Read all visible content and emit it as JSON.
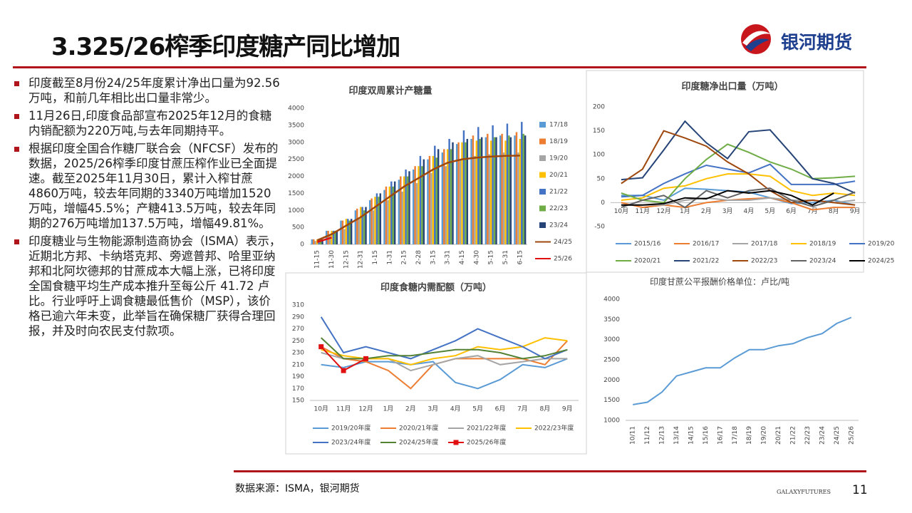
{
  "header": {
    "title": "3.325/26榨季印度糖产同比增加",
    "brand": "银河期货"
  },
  "bullets": [
    "印度截至8月份24/25年度累计净出口量为92.56万吨，和前几年相比出口量非常少。",
    "11月26日,印度食品部宣布2025年12月的食糖内销配额为220万吨,与去年同期持平。",
    "根据印度全国合作糖厂联合会（NFCSF）发布的数据，2025/26榨季印度甘蔗压榨作业已全面提速。截至2025年11月30日，累计入榨甘蔗4860万吨，较去年同期的3340万吨增加1520万吨，增幅45.5%；产糖413.5万吨，较去年同期的276万吨增加137.5万吨，增幅49.81%。",
    "印度糖业与生物能源制造商协会（ISMA）表示，近期北方邦、卡纳塔克邦、旁遮普邦、哈里亚纳邦和北阿坎德邦的甘蔗成本大幅上涨，已将印度全国食糖平均生产成本推升至每公斤 41.72 卢比。行业呼吁上调食糖最低售价（MSP），该价格已逾六年未变，此举旨在确保糖厂获得合理回报，并及时向农民支付款项。"
  ],
  "chart_data": [
    {
      "type": "bar",
      "title": "印度双周累计产糖量",
      "legend": "right",
      "grid": false,
      "categories": [
        "11-15",
        "11-30",
        "12-15",
        "12-31",
        "1-15",
        "1-31",
        "2-15",
        "2-28",
        "3-15",
        "3-31",
        "4-15",
        "4-30",
        "5-15",
        "5-31",
        "6-15"
      ],
      "ylim": [
        0,
        4000
      ],
      "yticks": [
        0,
        500,
        1000,
        1500,
        2000,
        2500,
        3000,
        3500,
        4000
      ],
      "series": [
        {
          "name": "17/18",
          "type": "bar",
          "color": "#5b9bd5",
          "values": [
            150,
            400,
            700,
            1000,
            1300,
            1600,
            1900,
            2200,
            2500,
            2700,
            2950,
            3100,
            3150,
            3200,
            3200
          ]
        },
        {
          "name": "18/19",
          "type": "bar",
          "color": "#ed7d31",
          "values": [
            150,
            400,
            700,
            1050,
            1350,
            1700,
            2000,
            2300,
            2600,
            2800,
            3000,
            3200,
            3250,
            3250,
            3300
          ]
        },
        {
          "name": "19/20",
          "type": "bar",
          "color": "#a5a5a5",
          "values": [
            100,
            250,
            450,
            750,
            1000,
            1300,
            1550,
            1800,
            2100,
            2300,
            2500,
            2600,
            2650,
            2700,
            2700
          ]
        },
        {
          "name": "20/21",
          "type": "bar",
          "color": "#ffc000",
          "values": [
            150,
            400,
            750,
            1100,
            1400,
            1700,
            2000,
            2300,
            2600,
            2800,
            3000,
            3050,
            3050,
            3050,
            3100
          ]
        },
        {
          "name": "21/22",
          "type": "bar",
          "color": "#4472c4",
          "values": [
            150,
            400,
            750,
            1100,
            1500,
            1850,
            2200,
            2600,
            2900,
            3100,
            3350,
            3450,
            3500,
            3550,
            3600
          ]
        },
        {
          "name": "22/23",
          "type": "bar",
          "color": "#70ad47",
          "values": [
            150,
            400,
            700,
            1000,
            1400,
            1700,
            2000,
            2300,
            2550,
            2800,
            3000,
            3100,
            3150,
            3200,
            3250
          ]
        },
        {
          "name": "23/24",
          "type": "bar",
          "color": "#264478",
          "values": [
            150,
            400,
            750,
            1100,
            1500,
            1850,
            2150,
            2500,
            2800,
            3000,
            3100,
            3150,
            3150,
            3150,
            3200
          ]
        },
        {
          "name": "24/25",
          "type": "line",
          "color": "#9e480e",
          "values": [
            120,
            300,
            550,
            800,
            1100,
            1400,
            1700,
            1950,
            2200,
            2400,
            2500,
            2550,
            2580,
            2600,
            2610
          ]
        },
        {
          "name": "25/26",
          "type": "line",
          "color": "#e01010",
          "values": [
            70,
            200,
            null,
            null,
            null,
            null,
            null,
            null,
            null,
            null,
            null,
            null,
            null,
            null,
            null
          ]
        }
      ]
    },
    {
      "type": "line",
      "title": "印度糖净出口量（万吨）",
      "legend": "bottom",
      "grid": false,
      "categories": [
        "10月",
        "11月",
        "12月",
        "1月",
        "2月",
        "3月",
        "4月",
        "5月",
        "6月",
        "7月",
        "8月",
        "9月"
      ],
      "ylim": [
        -50,
        200
      ],
      "yticks": [
        -50,
        0,
        50,
        100,
        150,
        200
      ],
      "series": [
        {
          "name": "2015/16",
          "color": "#5b9bd5",
          "values": [
            15,
            15,
            5,
            30,
            28,
            25,
            22,
            10,
            -2,
            0,
            5,
            -5
          ]
        },
        {
          "name": "2016/17",
          "color": "#ed7d31",
          "values": [
            0,
            -10,
            -5,
            -10,
            0,
            5,
            8,
            10,
            0,
            -15,
            -10,
            -10
          ]
        },
        {
          "name": "2017/18",
          "color": "#a5a5a5",
          "values": [
            -5,
            -5,
            -5,
            5,
            10,
            5,
            5,
            10,
            5,
            5,
            0,
            5
          ]
        },
        {
          "name": "2018/19",
          "color": "#ffc000",
          "values": [
            5,
            10,
            30,
            35,
            50,
            60,
            60,
            55,
            25,
            15,
            20,
            15
          ]
        },
        {
          "name": "2019/20",
          "color": "#4472c4",
          "values": [
            12,
            15,
            40,
            60,
            78,
            70,
            62,
            80,
            38,
            38,
            38,
            45
          ]
        },
        {
          "name": "2020/21",
          "color": "#70ad47",
          "values": [
            20,
            5,
            0,
            50,
            90,
            122,
            105,
            85,
            70,
            50,
            52,
            55
          ]
        },
        {
          "name": "2021/22",
          "color": "#264478",
          "values": [
            48,
            52,
            110,
            170,
            125,
            92,
            148,
            152,
            102,
            50,
            40,
            20
          ]
        },
        {
          "name": "2022/23",
          "color": "#9e480e",
          "values": [
            40,
            70,
            150,
            135,
            118,
            85,
            60,
            25,
            0,
            5,
            0,
            -5
          ]
        },
        {
          "name": "2023/24",
          "color": "#636363",
          "values": [
            -10,
            5,
            15,
            -10,
            25,
            10,
            25,
            30,
            5,
            -8,
            5,
            22
          ]
        },
        {
          "name": "2024/25",
          "color": "#000000",
          "values": [
            -5,
            -5,
            -2,
            10,
            8,
            25,
            20,
            25,
            15,
            -5,
            20,
            null
          ]
        }
      ]
    },
    {
      "type": "line",
      "title": "印度食糖内需配额（万吨）",
      "legend": "bottom",
      "grid": false,
      "categories": [
        "10月",
        "11月",
        "12月",
        "1月",
        "2月",
        "3月",
        "4月",
        "5月",
        "6月",
        "7月",
        "8月",
        "9月"
      ],
      "ylim": [
        150,
        310
      ],
      "yticks": [
        150,
        170,
        190,
        210,
        230,
        250,
        270,
        290,
        310
      ],
      "series": [
        {
          "name": "2019/20年度",
          "color": "#5b9bd5",
          "values": [
            210,
            205,
            215,
            215,
            210,
            215,
            180,
            170,
            185,
            210,
            205,
            220
          ]
        },
        {
          "name": "2020/21年度",
          "color": "#ed7d31",
          "values": [
            240,
            220,
            215,
            200,
            170,
            210,
            220,
            220,
            220,
            220,
            210,
            250
          ]
        },
        {
          "name": "2021/22年度",
          "color": "#a5a5a5",
          "values": [
            230,
            220,
            220,
            220,
            200,
            210,
            220,
            225,
            210,
            215,
            220,
            220
          ]
        },
        {
          "name": "2022/23年度",
          "color": "#ffc000",
          "values": [
            235,
            225,
            220,
            220,
            210,
            220,
            225,
            240,
            235,
            240,
            255,
            250
          ]
        },
        {
          "name": "2023/24年度",
          "color": "#4472c4",
          "values": [
            290,
            230,
            240,
            230,
            220,
            235,
            250,
            270,
            255,
            240,
            220,
            235
          ]
        },
        {
          "name": "2024/25年度",
          "color": "#548235",
          "values": [
            255,
            220,
            220,
            225,
            225,
            230,
            235,
            235,
            230,
            220,
            225,
            235
          ]
        },
        {
          "name": "2025/26年度",
          "color": "#e01010",
          "marker": "square",
          "values": [
            240,
            200,
            220,
            null,
            null,
            null,
            null,
            null,
            null,
            null,
            null,
            null
          ]
        }
      ]
    },
    {
      "type": "line",
      "title": "印度甘蔗公平报酬价格单位：卢比/吨",
      "grid": false,
      "color": "#5b9bd5",
      "categories": [
        "10/11",
        "11/12",
        "12/13",
        "13/14",
        "14/15",
        "15/16",
        "16/17",
        "17/18",
        "18/19",
        "19/20",
        "20/21",
        "21/22",
        "22/23",
        "23/24",
        "24/25",
        "25/26"
      ],
      "ylim": [
        1000,
        4000
      ],
      "yticks": [
        1000,
        1500,
        2000,
        2500,
        3000,
        3500,
        4000
      ],
      "values": [
        1390,
        1450,
        1700,
        2100,
        2200,
        2300,
        2300,
        2550,
        2750,
        2750,
        2850,
        2900,
        3050,
        3150,
        3400,
        3550
      ]
    }
  ],
  "footer": {
    "source": "数据来源：ISMA，银河期货",
    "brand": "GALAXYFUTURES",
    "page": "11"
  }
}
